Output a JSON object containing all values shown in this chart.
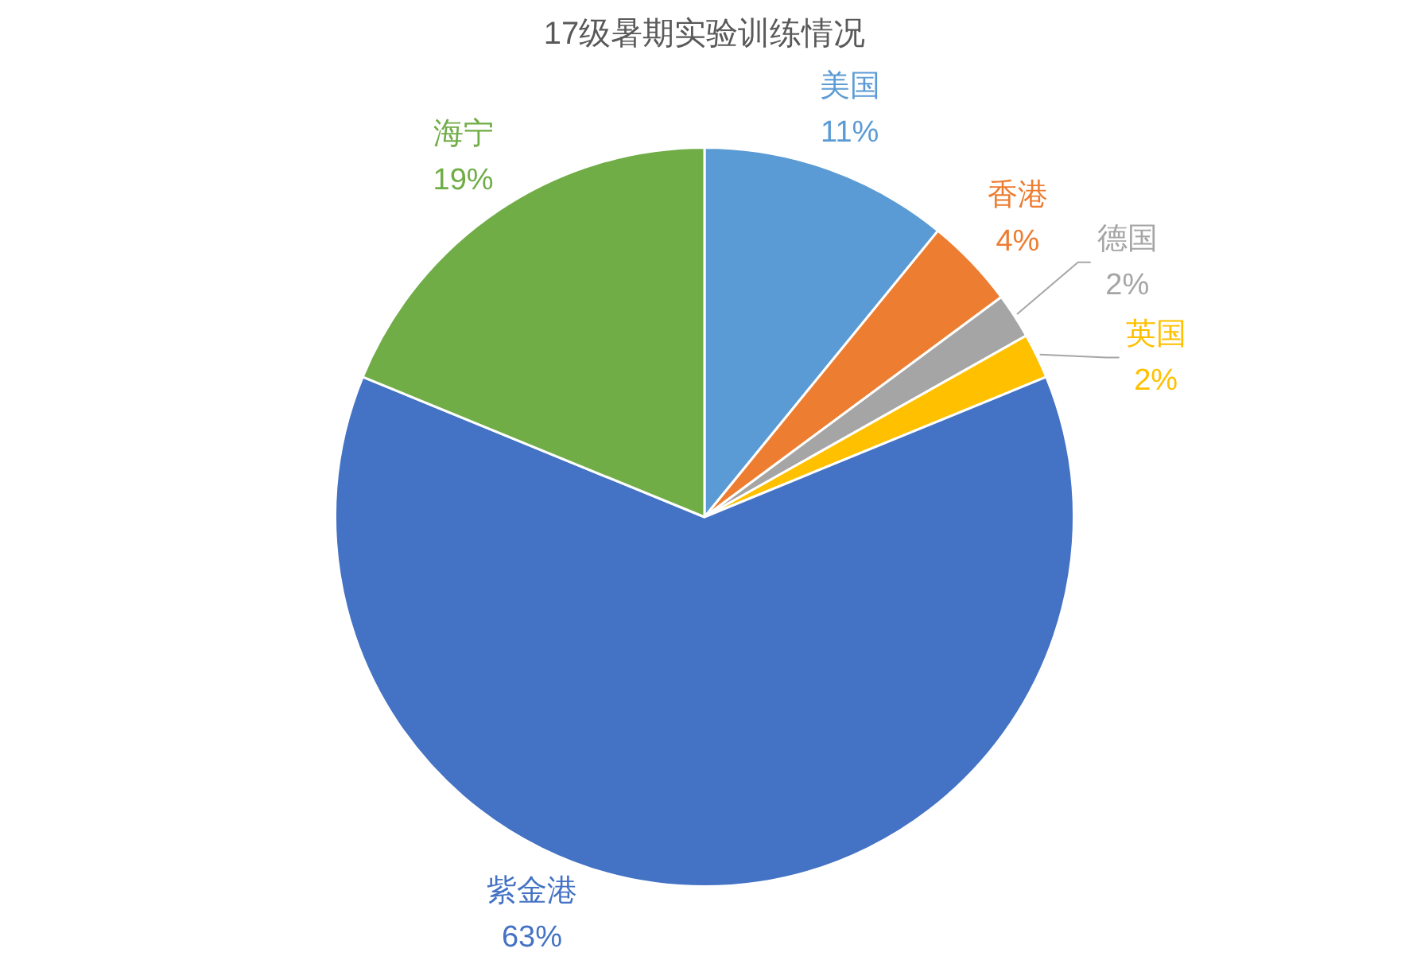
{
  "chart_data": {
    "type": "pie",
    "title": "17级暑期实验训练情况",
    "categories": [
      "美国",
      "香港",
      "德国",
      "英国",
      "紫金港",
      "海宁"
    ],
    "values": [
      11,
      4,
      2,
      2,
      63,
      19
    ],
    "colors": [
      "#5b9bd5",
      "#ed7d31",
      "#a5a5a5",
      "#ffc000",
      "#4472c4",
      "#70ad47"
    ],
    "value_labels": [
      "11%",
      "4%",
      "2%",
      "2%",
      "63%",
      "19%"
    ]
  }
}
